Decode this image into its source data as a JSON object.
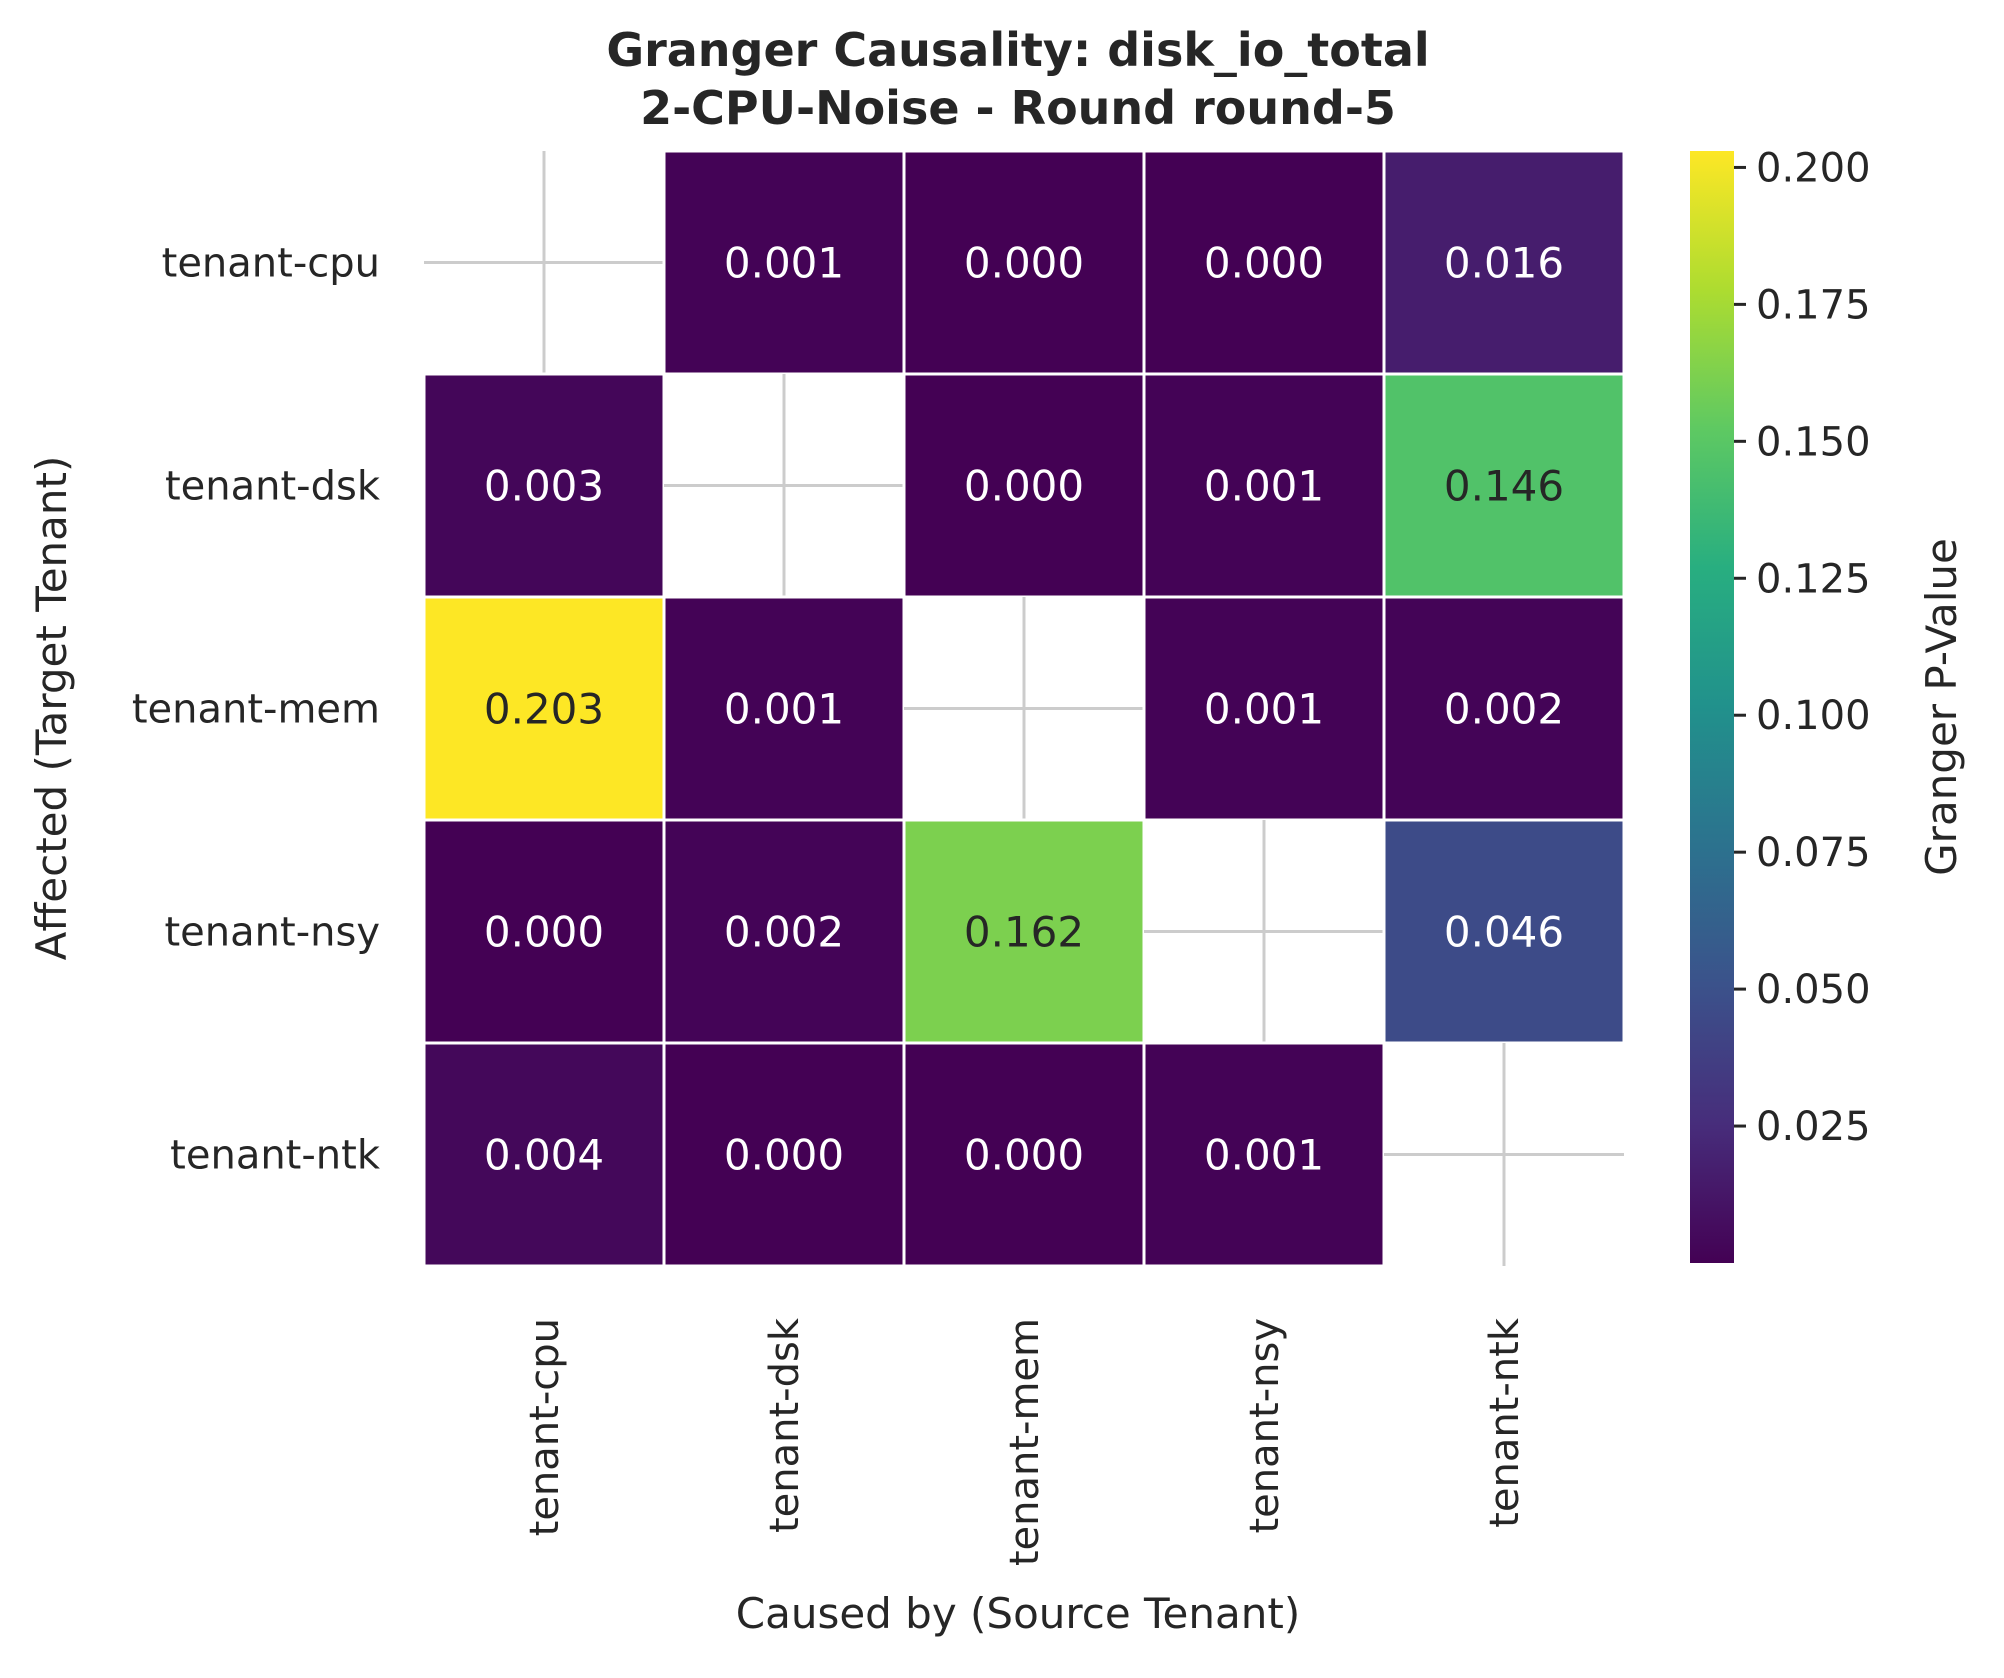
{
  "chart_data": {
    "type": "heatmap",
    "title_lines": [
      "Granger Causality: disk_io_total",
      "2-CPU-Noise - Round round-5"
    ],
    "xlabel": "Caused by (Source Tenant)",
    "ylabel": "Affected (Target Tenant)",
    "x_categories": [
      "tenant-cpu",
      "tenant-dsk",
      "tenant-mem",
      "tenant-nsy",
      "tenant-ntk"
    ],
    "y_categories": [
      "tenant-cpu",
      "tenant-dsk",
      "tenant-mem",
      "tenant-nsy",
      "tenant-ntk"
    ],
    "values": [
      [
        null,
        0.001,
        0.0,
        0.0,
        0.016
      ],
      [
        0.003,
        null,
        0.0,
        0.001,
        0.146
      ],
      [
        0.203,
        0.001,
        null,
        0.001,
        0.002
      ],
      [
        0.0,
        0.002,
        0.162,
        null,
        0.046
      ],
      [
        0.004,
        0.0,
        0.0,
        0.001,
        null
      ]
    ],
    "labels": [
      [
        "",
        "0.001",
        "0.000",
        "0.000",
        "0.016"
      ],
      [
        "0.003",
        "",
        "0.000",
        "0.001",
        "0.146"
      ],
      [
        "0.203",
        "0.001",
        "",
        "0.001",
        "0.002"
      ],
      [
        "0.000",
        "0.002",
        "0.162",
        "",
        "0.046"
      ],
      [
        "0.004",
        "0.000",
        "0.000",
        "0.001",
        ""
      ]
    ],
    "colorbar": {
      "label": "Granger P-Value",
      "colormap": "viridis",
      "range": [
        0.0,
        0.203
      ],
      "ticks": [
        0.025,
        0.05,
        0.075,
        0.1,
        0.125,
        0.15,
        0.175,
        0.2
      ],
      "tick_labels": [
        "0.025",
        "0.050",
        "0.075",
        "0.100",
        "0.125",
        "0.150",
        "0.175",
        "0.200"
      ]
    },
    "diagonal": "masked",
    "grid": false
  }
}
